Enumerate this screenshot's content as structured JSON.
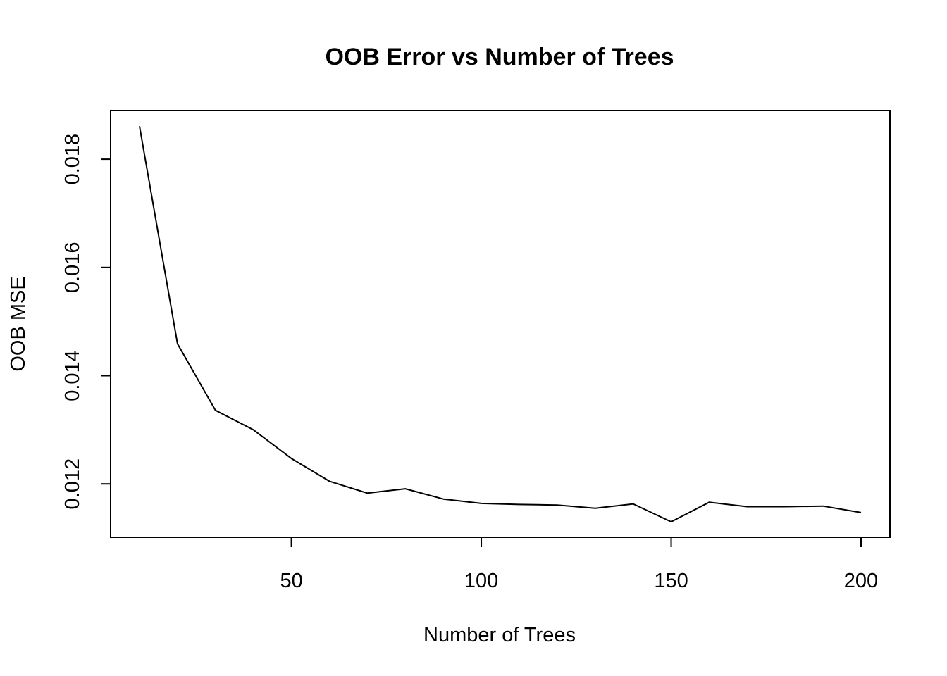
{
  "chart_data": {
    "type": "line",
    "title": "OOB Error vs Number of Trees",
    "xlabel": "Number of Trees",
    "ylabel": "OOB MSE",
    "xlim": [
      10,
      200
    ],
    "ylim": [
      0.0113,
      0.0186
    ],
    "x_ticks": [
      50,
      100,
      150,
      200
    ],
    "y_ticks": [
      0.012,
      0.014,
      0.016,
      0.018
    ],
    "x_tick_labels": [
      "50",
      "100",
      "150",
      "200"
    ],
    "y_tick_labels": [
      "0.012",
      "0.014",
      "0.016",
      "0.018"
    ],
    "grid": false,
    "legend": "none",
    "line_color": "#000000",
    "series": [
      {
        "x": [
          10,
          20,
          30,
          40,
          50,
          60,
          70,
          80,
          90,
          100,
          110,
          120,
          130,
          140,
          150,
          160,
          170,
          180,
          190,
          200
        ],
        "values": [
          0.01861,
          0.01459,
          0.01336,
          0.013,
          0.01247,
          0.01205,
          0.01183,
          0.01191,
          0.01172,
          0.01164,
          0.01162,
          0.01161,
          0.01155,
          0.01163,
          0.0113,
          0.01166,
          0.01158,
          0.01158,
          0.01159,
          0.01147
        ]
      }
    ]
  }
}
